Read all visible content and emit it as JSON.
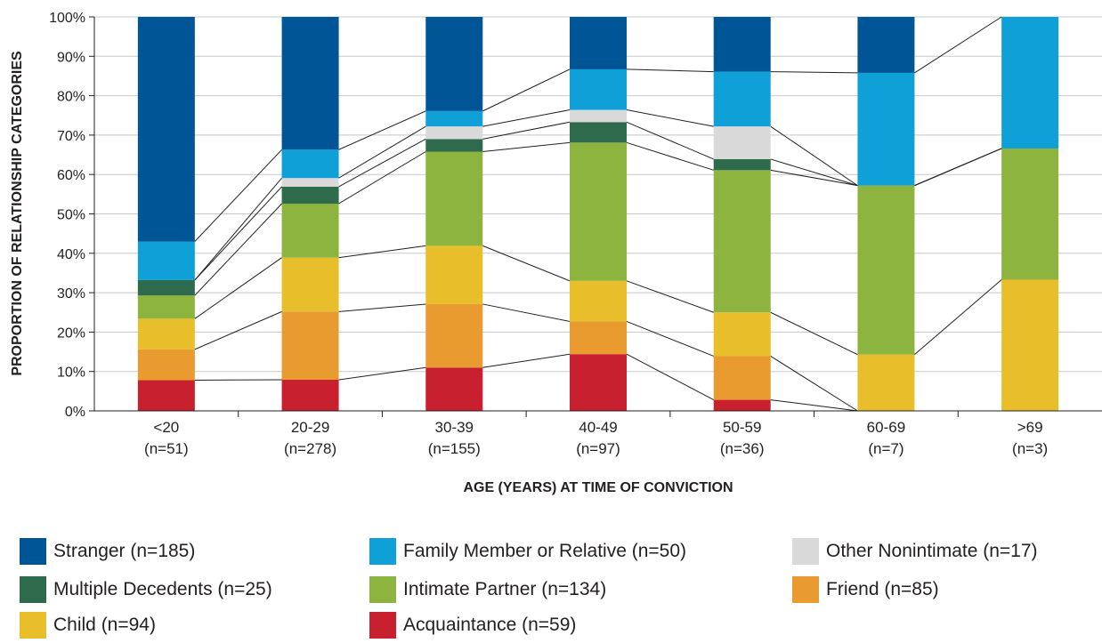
{
  "chart_data": {
    "type": "bar",
    "stacked": true,
    "percent_stacked": true,
    "xlabel": "AGE (YEARS) AT TIME OF CONVICTION",
    "ylabel": "PROPORTION OF RELATIONSHIP CATEGORIES",
    "ylim": [
      0,
      100
    ],
    "yticks": [
      "0%",
      "10%",
      "20%",
      "30%",
      "40%",
      "50%",
      "60%",
      "70%",
      "80%",
      "90%",
      "100%"
    ],
    "categories": [
      "<20",
      "20-29",
      "30-39",
      "40-49",
      "50-59",
      "60-69",
      ">69"
    ],
    "category_counts": [
      "(n=51)",
      "(n=278)",
      "(n=155)",
      "(n=97)",
      "(n=36)",
      "(n=7)",
      "(n=3)"
    ],
    "connector_lines": true,
    "legend_position": "bottom",
    "series": [
      {
        "name": "Acquaintance (n=59)",
        "color": "#c8202f",
        "values": [
          7.8,
          7.9,
          11.0,
          14.4,
          2.8,
          0,
          0
        ]
      },
      {
        "name": "Friend  (n=85)",
        "color": "#e99b2f",
        "values": [
          7.8,
          17.3,
          16.1,
          8.3,
          11.1,
          0,
          0
        ]
      },
      {
        "name": "Child (n=94)",
        "color": "#e8bf2b",
        "values": [
          7.8,
          13.7,
          14.8,
          10.3,
          11.1,
          14.3,
          33.3
        ]
      },
      {
        "name": "Intimate Partner (n=134)",
        "color": "#8cb43e",
        "values": [
          5.9,
          13.7,
          23.9,
          35.1,
          36.1,
          42.9,
          33.3
        ]
      },
      {
        "name": "Multiple Decedents (n=25)",
        "color": "#2e6b4c",
        "values": [
          3.9,
          4.3,
          3.2,
          5.2,
          2.8,
          0,
          0
        ]
      },
      {
        "name": "Other Nonintimate (n=17)",
        "color": "#d9d9d9",
        "values": [
          0,
          2.2,
          3.2,
          3.1,
          8.3,
          0,
          0
        ]
      },
      {
        "name": "Family Member or Relative (n=50)",
        "color": "#0fa0d8",
        "values": [
          9.8,
          7.2,
          3.9,
          10.3,
          13.9,
          28.6,
          33.4
        ]
      },
      {
        "name": "Stranger (n=185)",
        "color": "#005596",
        "values": [
          57.0,
          33.7,
          23.9,
          13.3,
          13.9,
          14.2,
          0
        ]
      }
    ]
  },
  "legend": {
    "items": [
      {
        "label": "Stranger (n=185)",
        "color": "#005596"
      },
      {
        "label": "Family Member or Relative (n=50)",
        "color": "#0fa0d8"
      },
      {
        "label": "Other Nonintimate (n=17)",
        "color": "#d9d9d9"
      },
      {
        "label": "Multiple Decedents (n=25)",
        "color": "#2e6b4c"
      },
      {
        "label": "Intimate Partner (n=134)",
        "color": "#8cb43e"
      },
      {
        "label": "Friend  (n=85)",
        "color": "#e99b2f"
      },
      {
        "label": "Child (n=94)",
        "color": "#e8bf2b"
      },
      {
        "label": "Acquaintance (n=59)",
        "color": "#c8202f"
      }
    ]
  }
}
